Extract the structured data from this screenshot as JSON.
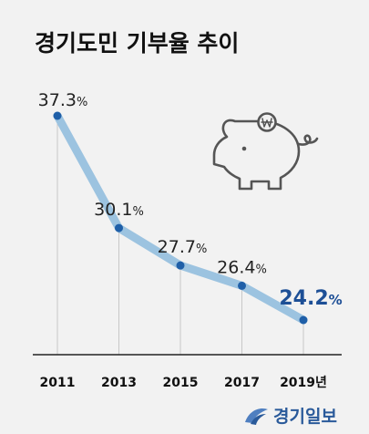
{
  "title": "경기도민 기부율 추이",
  "colors": {
    "line": "#9cc3e0",
    "point": "#1f5fa8",
    "highlight": "#1d4f96",
    "label": "#222222",
    "grid": "#c8c8c8",
    "axis": "#222222"
  },
  "logo_text": "경기일보",
  "chart_data": {
    "type": "line",
    "title": "경기도민 기부율 추이",
    "x": [
      "2011",
      "2013",
      "2015",
      "2017",
      "2019년"
    ],
    "series": [
      {
        "values": [
          37.3,
          30.1,
          27.7,
          26.4,
          24.2
        ],
        "labels": [
          "37.3%",
          "30.1%",
          "27.7%",
          "26.4%",
          "24.2%"
        ]
      }
    ],
    "highlight_index": 4,
    "grid": "vertical-lines",
    "legend": "none",
    "icon": "piggy-bank-won-icon"
  }
}
